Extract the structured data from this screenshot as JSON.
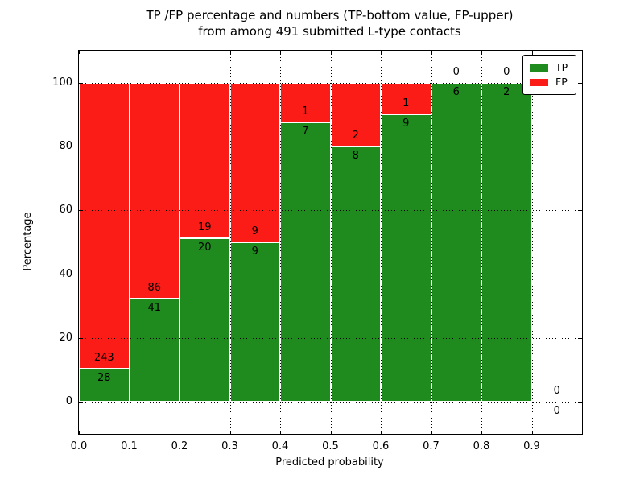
{
  "chart_data": {
    "type": "bar",
    "stacked": true,
    "title": "TP /FP percentage and numbers (TP-bottom value, FP-upper)",
    "subtitle": "from among 491 submitted L-type contacts",
    "xlabel": "Predicted probability",
    "ylabel": "Percentage",
    "xlim": [
      0.0,
      1.0
    ],
    "ylim": [
      -10,
      110
    ],
    "xticks": [
      "0.0",
      "0.1",
      "0.2",
      "0.3",
      "0.4",
      "0.5",
      "0.6",
      "0.7",
      "0.8",
      "0.9"
    ],
    "yticks": [
      0,
      20,
      40,
      60,
      80,
      100
    ],
    "grid": "dotted black, on",
    "total_submitted": 491,
    "legend": {
      "position": "upper right",
      "entries": [
        {
          "label": "TP",
          "color": "#1f8b1f"
        },
        {
          "label": "FP",
          "color": "#fb1c18"
        }
      ]
    },
    "bins": [
      {
        "x0": 0.0,
        "x1": 0.1,
        "tp": 28,
        "fp": 243,
        "tp_pct": 10.33
      },
      {
        "x0": 0.1,
        "x1": 0.2,
        "tp": 41,
        "fp": 86,
        "tp_pct": 32.28
      },
      {
        "x0": 0.2,
        "x1": 0.3,
        "tp": 20,
        "fp": 19,
        "tp_pct": 51.28
      },
      {
        "x0": 0.3,
        "x1": 0.4,
        "tp": 9,
        "fp": 9,
        "tp_pct": 50.0
      },
      {
        "x0": 0.4,
        "x1": 0.5,
        "tp": 7,
        "fp": 1,
        "tp_pct": 87.5
      },
      {
        "x0": 0.5,
        "x1": 0.6,
        "tp": 8,
        "fp": 2,
        "tp_pct": 80.0
      },
      {
        "x0": 0.6,
        "x1": 0.7,
        "tp": 9,
        "fp": 1,
        "tp_pct": 90.0
      },
      {
        "x0": 0.7,
        "x1": 0.8,
        "tp": 6,
        "fp": 0,
        "tp_pct": 100.0
      },
      {
        "x0": 0.8,
        "x1": 0.9,
        "tp": 2,
        "fp": 0,
        "tp_pct": 100.0
      },
      {
        "x0": 0.9,
        "x1": 1.0,
        "tp": 0,
        "fp": 0,
        "tp_pct": 0.0
      }
    ]
  }
}
